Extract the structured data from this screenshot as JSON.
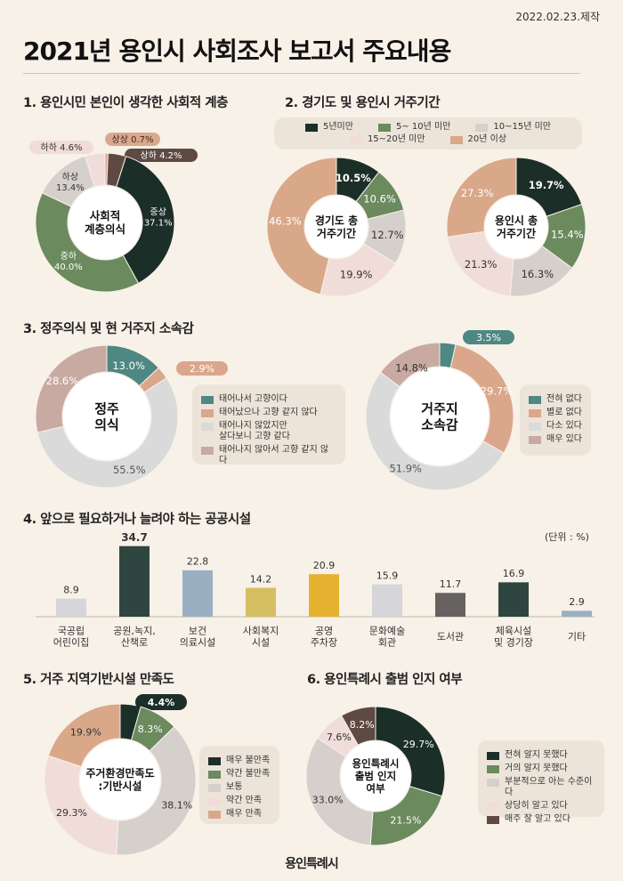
{
  "header": {
    "date": "2022.02.23.제작",
    "title": "2021년 용인시 사회조사 보고서 주요내용"
  },
  "sections": {
    "s1": "1. 용인시민 본인이 생각한 사회적 계층",
    "s2": "2. 경기도 및 용인시 거주기간",
    "s3": "3. 정주의식 및 현 거주지 소속감",
    "s4": "4. 앞으로 필요하거나 늘려야 하는 공공시설",
    "s5": "5. 거주 지역기반시설 만족도",
    "s6": "6. 용인특례시 출범 인지 여부"
  },
  "colors": {
    "dark": "#1c2e28",
    "green": "#6b8a5e",
    "gray": "#d6d0cc",
    "pink": "#f0dcd8",
    "tan": "#d9a889",
    "teal": "#4e8882",
    "lightgray": "#dadada",
    "brown": "#5e4a43",
    "rose": "#c8aaa3"
  },
  "unit_label": "(단위 : %)",
  "footer_logo": "용인특례시",
  "chart_data": [
    {
      "id": "social_class",
      "type": "pie",
      "center": "사회적\n계층의식",
      "slices": [
        {
          "label": "상상",
          "value": 0.7,
          "color": "#dba78c"
        },
        {
          "label": "상하",
          "value": 4.2,
          "color": "#5e4a43"
        },
        {
          "label": "중상",
          "value": 37.1,
          "color": "#1c2e28"
        },
        {
          "label": "중하",
          "value": 40.0,
          "color": "#6b8a5e"
        },
        {
          "label": "하상",
          "value": 13.4,
          "color": "#d6d0cc"
        },
        {
          "label": "하하",
          "value": 4.6,
          "color": "#f0dcd8"
        }
      ]
    },
    {
      "id": "gyeonggi_residence",
      "type": "pie",
      "center": "경기도 총\n거주기간",
      "slices": [
        {
          "label": "5년미만",
          "value": 10.5,
          "color": "#1c2e28"
        },
        {
          "label": "5~ 10년 미만",
          "value": 10.6,
          "color": "#6b8a5e"
        },
        {
          "label": "10~15년 미만",
          "value": 12.7,
          "color": "#d6d0cc"
        },
        {
          "label": "15~20년 미만",
          "value": 19.9,
          "color": "#f0dcd8"
        },
        {
          "label": "20년 이상",
          "value": 46.3,
          "color": "#d9a889"
        }
      ]
    },
    {
      "id": "yongin_residence",
      "type": "pie",
      "center": "용인시 총\n거주기간",
      "slices": [
        {
          "label": "5년미만",
          "value": 19.7,
          "color": "#1c2e28"
        },
        {
          "label": "5~ 10년 미만",
          "value": 15.4,
          "color": "#6b8a5e"
        },
        {
          "label": "10~15년 미만",
          "value": 16.3,
          "color": "#d6d0cc"
        },
        {
          "label": "15~20년 미만",
          "value": 21.3,
          "color": "#f0dcd8"
        },
        {
          "label": "20년 이상",
          "value": 27.3,
          "color": "#d9a889"
        }
      ]
    },
    {
      "id": "settlement",
      "type": "pie",
      "center": "정주\n의식",
      "slices": [
        {
          "label": "태어나서 고향이다",
          "value": 13.0,
          "color": "#4e8882"
        },
        {
          "label": "태어났으나 고향 같지 않다",
          "value": 2.9,
          "color": "#dba78c"
        },
        {
          "label": "태어나지 않았지만\n살다보니 고향 같다",
          "value": 55.5,
          "color": "#dadada"
        },
        {
          "label": "태어나지 않아서 고향 같지 않다",
          "value": 28.6,
          "color": "#c8aaa3"
        }
      ]
    },
    {
      "id": "belonging",
      "type": "pie",
      "center": "거주지\n소속감",
      "slices": [
        {
          "label": "전혀 없다",
          "value": 3.5,
          "color": "#4e8882"
        },
        {
          "label": "별로 없다",
          "value": 29.7,
          "color": "#dba78c"
        },
        {
          "label": "다소 있다",
          "value": 51.9,
          "color": "#dadada"
        },
        {
          "label": "매우 있다",
          "value": 14.8,
          "color": "#c8aaa3"
        }
      ]
    },
    {
      "id": "public_facilities",
      "type": "bar",
      "categories": [
        "국공립\n어린이집",
        "공원,녹지,\n산책로",
        "보건\n의료시설",
        "사회복지\n시설",
        "공영\n주차장",
        "문화예술\n회관",
        "도서관",
        "체육시설\n및 경기장",
        "기타"
      ],
      "values": [
        8.9,
        34.7,
        22.8,
        14.2,
        20.9,
        15.9,
        11.7,
        16.9,
        2.9
      ],
      "colors": [
        "#d5d5da",
        "#2f4540",
        "#9aafc2",
        "#d6bf62",
        "#e4b22f",
        "#d5d5da",
        "#666262",
        "#2f4540",
        "#9aafc2"
      ],
      "ylabel": "(단위 : %)"
    },
    {
      "id": "infrastructure_satisfaction",
      "type": "pie",
      "center": "주거환경만족도\n:기반시설",
      "slices": [
        {
          "label": "매우 불만족",
          "value": 4.4,
          "color": "#1c2e28"
        },
        {
          "label": "약간 불만족",
          "value": 8.3,
          "color": "#6b8a5e"
        },
        {
          "label": "보통",
          "value": 38.1,
          "color": "#d6d0cc"
        },
        {
          "label": "약간 만족",
          "value": 29.3,
          "color": "#f0dcd8"
        },
        {
          "label": "매우 만족",
          "value": 19.9,
          "color": "#d9a889"
        }
      ]
    },
    {
      "id": "special_city_awareness",
      "type": "pie",
      "center": "용인특례시\n출범 인지\n여부",
      "slices": [
        {
          "label": "전혀 알지 못했다",
          "value": 29.7,
          "color": "#1c2e28"
        },
        {
          "label": "거의 알지 못했다",
          "value": 21.5,
          "color": "#6b8a5e"
        },
        {
          "label": "부분적으로 아는 수준이다",
          "value": 33,
          "color": "#d6d0cc"
        },
        {
          "label": "상당히 알고 있다",
          "value": 7.6,
          "color": "#f0dcd8"
        },
        {
          "label": "매주 잘 알고 있다",
          "value": 8.2,
          "color": "#5e4a43"
        }
      ]
    }
  ]
}
